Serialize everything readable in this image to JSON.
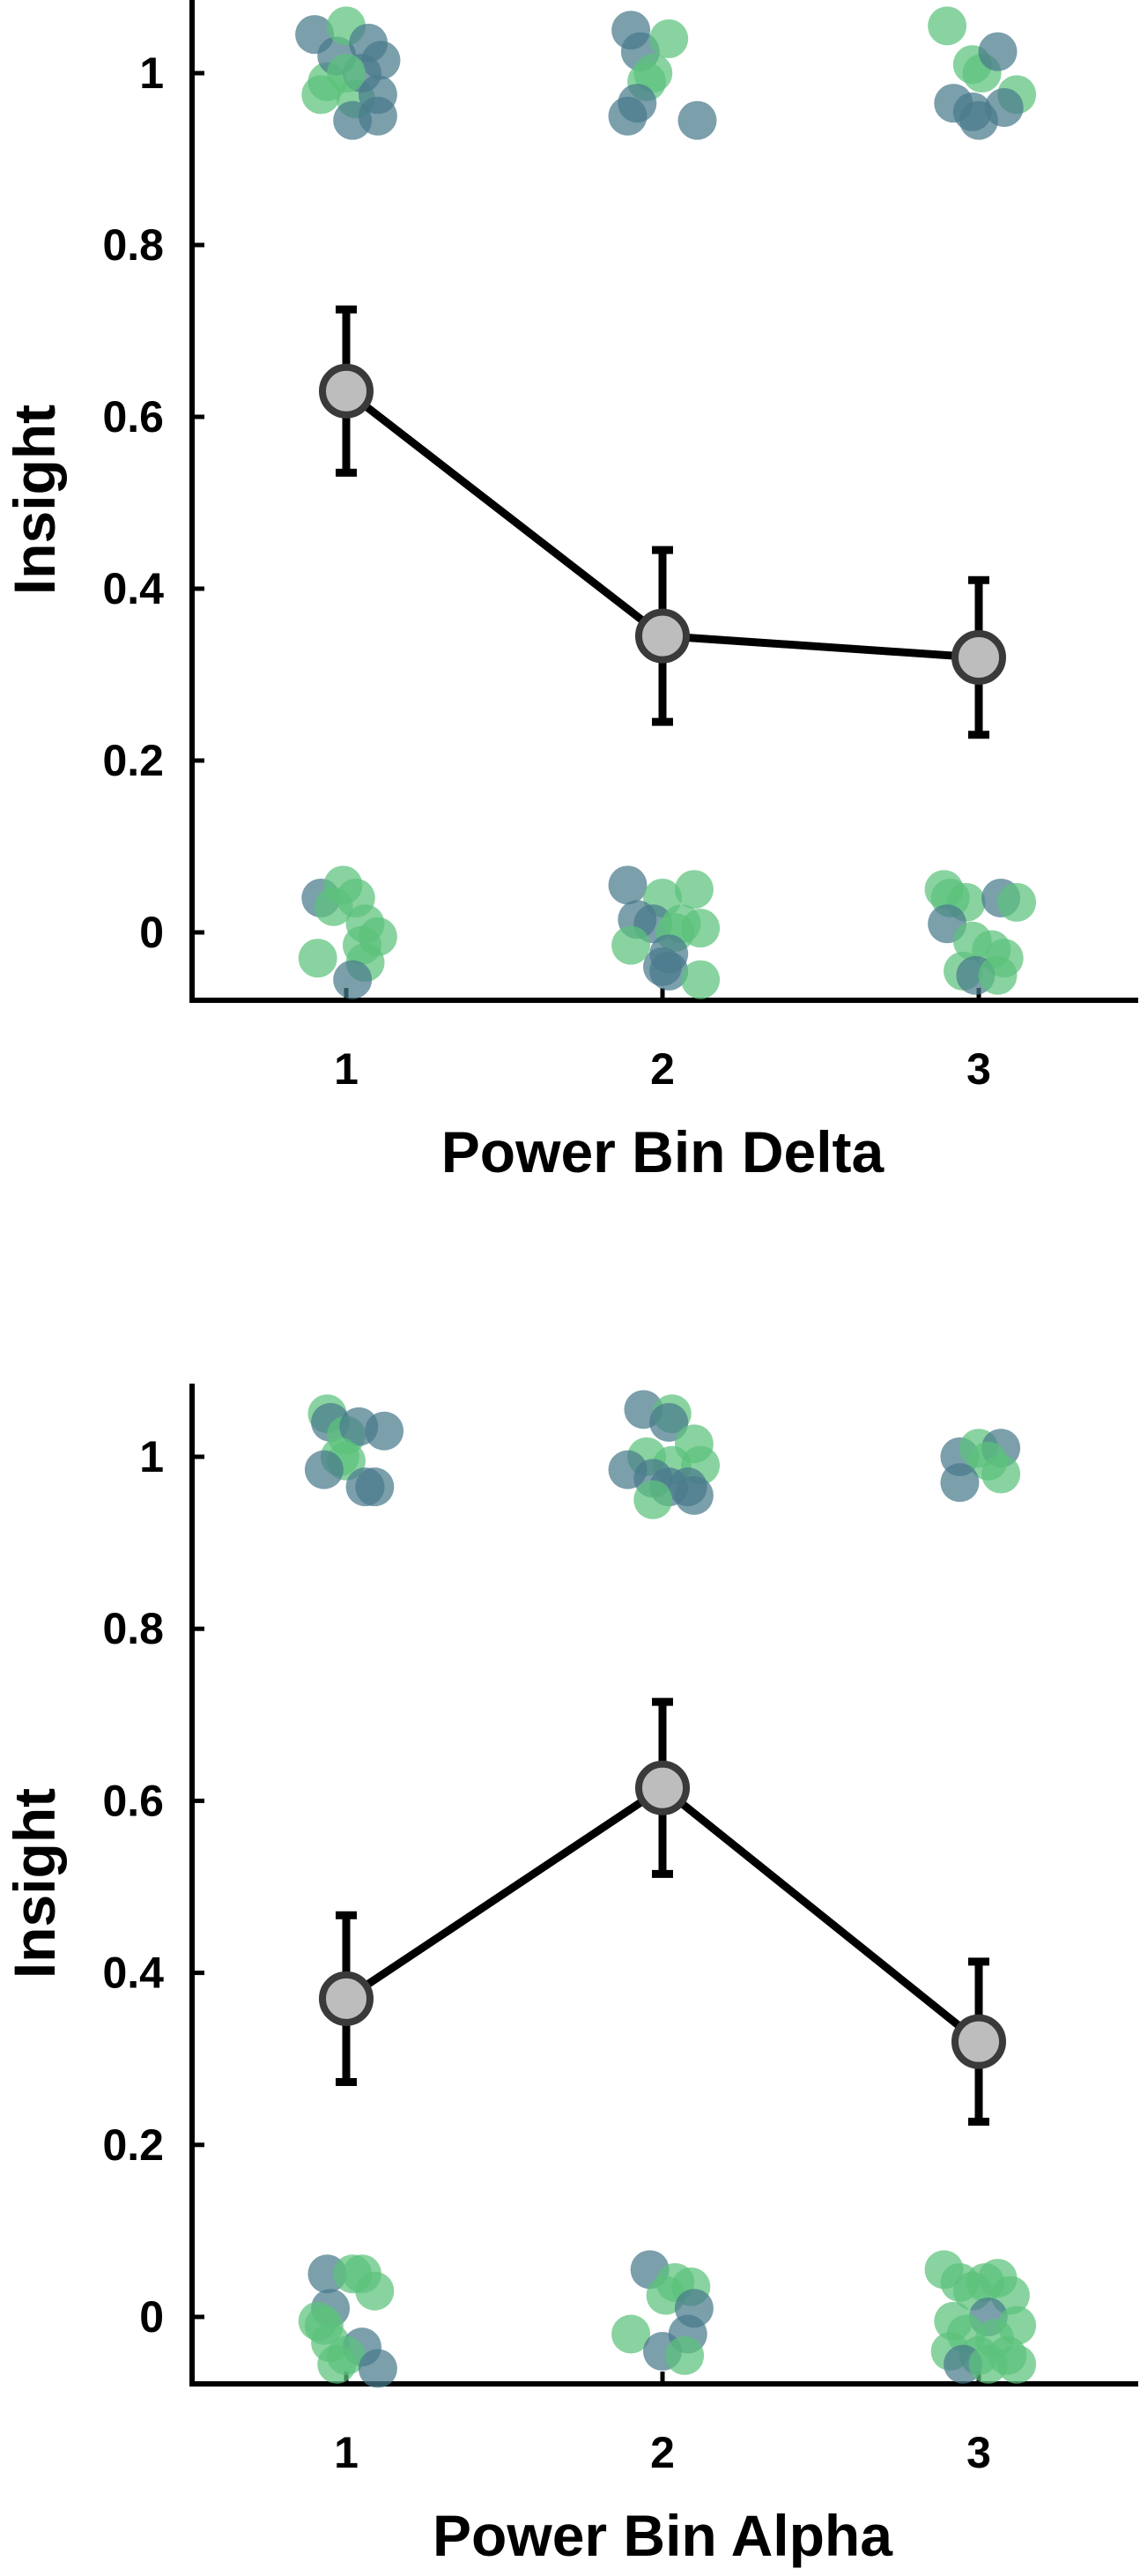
{
  "colors": {
    "dot_teal": "#4a7a8c",
    "dot_green": "#5cc27c",
    "mean_fill": "#bdbdbd",
    "mean_edge": "#3a3a3a",
    "line": "#000000"
  },
  "chart_data": [
    {
      "type": "scatter",
      "xlabel": "Power Bin Delta",
      "ylabel": "Insight",
      "x_ticks": [
        "1",
        "2",
        "3"
      ],
      "y_ticks": [
        "0",
        "0.2",
        "0.4",
        "0.6",
        "0.8",
        "1"
      ],
      "xlim": [
        0.5,
        3.5
      ],
      "ylim": [
        -0.08,
        1.08
      ],
      "grid": false,
      "mean_line": {
        "x": [
          1,
          2,
          3
        ],
        "y": [
          0.63,
          0.345,
          0.32
        ],
        "err": [
          0.095,
          0.1,
          0.09
        ]
      },
      "points": [
        {
          "x": 0.9,
          "y": 1.045,
          "c": "teal"
        },
        {
          "x": 0.94,
          "y": 0.99,
          "c": "green"
        },
        {
          "x": 0.97,
          "y": 1.02,
          "c": "teal"
        },
        {
          "x": 1.0,
          "y": 1.055,
          "c": "green"
        },
        {
          "x": 1.03,
          "y": 0.97,
          "c": "green"
        },
        {
          "x": 1.05,
          "y": 1.0,
          "c": "teal"
        },
        {
          "x": 1.07,
          "y": 1.035,
          "c": "teal"
        },
        {
          "x": 1.1,
          "y": 0.975,
          "c": "teal"
        },
        {
          "x": 1.11,
          "y": 1.015,
          "c": "teal"
        },
        {
          "x": 0.92,
          "y": 0.975,
          "c": "green"
        },
        {
          "x": 1.02,
          "y": 0.945,
          "c": "teal"
        },
        {
          "x": 1.1,
          "y": 0.95,
          "c": "teal"
        },
        {
          "x": 1.0,
          "y": 1.0,
          "c": "green"
        },
        {
          "x": 1.9,
          "y": 1.05,
          "c": "teal"
        },
        {
          "x": 1.93,
          "y": 1.025,
          "c": "teal"
        },
        {
          "x": 2.02,
          "y": 1.04,
          "c": "green"
        },
        {
          "x": 1.95,
          "y": 0.99,
          "c": "green"
        },
        {
          "x": 1.97,
          "y": 1.0,
          "c": "green"
        },
        {
          "x": 1.92,
          "y": 0.965,
          "c": "teal"
        },
        {
          "x": 1.89,
          "y": 0.95,
          "c": "teal"
        },
        {
          "x": 2.11,
          "y": 0.945,
          "c": "teal"
        },
        {
          "x": 2.9,
          "y": 1.055,
          "c": "green"
        },
        {
          "x": 2.98,
          "y": 1.01,
          "c": "green"
        },
        {
          "x": 3.01,
          "y": 1.0,
          "c": "green"
        },
        {
          "x": 3.06,
          "y": 1.025,
          "c": "teal"
        },
        {
          "x": 3.12,
          "y": 0.975,
          "c": "green"
        },
        {
          "x": 2.92,
          "y": 0.965,
          "c": "teal"
        },
        {
          "x": 2.98,
          "y": 0.955,
          "c": "teal"
        },
        {
          "x": 3.08,
          "y": 0.96,
          "c": "teal"
        },
        {
          "x": 3.0,
          "y": 0.945,
          "c": "teal"
        },
        {
          "x": 0.92,
          "y": 0.04,
          "c": "teal"
        },
        {
          "x": 0.96,
          "y": 0.03,
          "c": "green"
        },
        {
          "x": 0.99,
          "y": 0.055,
          "c": "green"
        },
        {
          "x": 1.03,
          "y": 0.04,
          "c": "green"
        },
        {
          "x": 1.06,
          "y": 0.01,
          "c": "green"
        },
        {
          "x": 1.1,
          "y": -0.005,
          "c": "green"
        },
        {
          "x": 1.05,
          "y": -0.015,
          "c": "green"
        },
        {
          "x": 0.91,
          "y": -0.03,
          "c": "green"
        },
        {
          "x": 1.06,
          "y": -0.035,
          "c": "green"
        },
        {
          "x": 1.02,
          "y": -0.055,
          "c": "teal"
        },
        {
          "x": 1.89,
          "y": 0.055,
          "c": "teal"
        },
        {
          "x": 2.0,
          "y": 0.04,
          "c": "green"
        },
        {
          "x": 2.1,
          "y": 0.05,
          "c": "green"
        },
        {
          "x": 1.92,
          "y": 0.015,
          "c": "teal"
        },
        {
          "x": 1.97,
          "y": 0.01,
          "c": "teal"
        },
        {
          "x": 2.04,
          "y": 0.0,
          "c": "green"
        },
        {
          "x": 2.06,
          "y": 0.01,
          "c": "green"
        },
        {
          "x": 2.12,
          "y": 0.005,
          "c": "green"
        },
        {
          "x": 1.9,
          "y": -0.015,
          "c": "green"
        },
        {
          "x": 2.02,
          "y": -0.025,
          "c": "teal"
        },
        {
          "x": 2.0,
          "y": -0.04,
          "c": "teal"
        },
        {
          "x": 2.02,
          "y": -0.045,
          "c": "teal"
        },
        {
          "x": 2.12,
          "y": -0.055,
          "c": "green"
        },
        {
          "x": 2.89,
          "y": 0.05,
          "c": "green"
        },
        {
          "x": 2.91,
          "y": 0.04,
          "c": "green"
        },
        {
          "x": 2.96,
          "y": 0.035,
          "c": "green"
        },
        {
          "x": 3.07,
          "y": 0.04,
          "c": "teal"
        },
        {
          "x": 3.12,
          "y": 0.035,
          "c": "green"
        },
        {
          "x": 2.9,
          "y": 0.01,
          "c": "teal"
        },
        {
          "x": 2.98,
          "y": -0.01,
          "c": "green"
        },
        {
          "x": 3.04,
          "y": -0.02,
          "c": "green"
        },
        {
          "x": 3.08,
          "y": -0.03,
          "c": "green"
        },
        {
          "x": 2.95,
          "y": -0.045,
          "c": "green"
        },
        {
          "x": 2.99,
          "y": -0.05,
          "c": "teal"
        },
        {
          "x": 3.06,
          "y": -0.05,
          "c": "green"
        }
      ]
    },
    {
      "type": "scatter",
      "xlabel": "Power Bin Alpha",
      "ylabel": "Insight",
      "x_ticks": [
        "1",
        "2",
        "3"
      ],
      "y_ticks": [
        "0",
        "0.2",
        "0.4",
        "0.6",
        "0.8",
        "1"
      ],
      "xlim": [
        0.5,
        3.5
      ],
      "ylim": [
        -0.08,
        1.08
      ],
      "grid": false,
      "mean_line": {
        "x": [
          1,
          2,
          3
        ],
        "y": [
          0.37,
          0.615,
          0.32
        ],
        "err": [
          0.097,
          0.1,
          0.093
        ]
      },
      "points": [
        {
          "x": 0.94,
          "y": 1.05,
          "c": "green"
        },
        {
          "x": 0.95,
          "y": 1.04,
          "c": "teal"
        },
        {
          "x": 1.0,
          "y": 1.025,
          "c": "green"
        },
        {
          "x": 1.04,
          "y": 1.035,
          "c": "teal"
        },
        {
          "x": 1.12,
          "y": 1.03,
          "c": "teal"
        },
        {
          "x": 0.98,
          "y": 1.0,
          "c": "green"
        },
        {
          "x": 1.0,
          "y": 0.995,
          "c": "green"
        },
        {
          "x": 0.93,
          "y": 0.985,
          "c": "teal"
        },
        {
          "x": 1.06,
          "y": 0.965,
          "c": "teal"
        },
        {
          "x": 1.09,
          "y": 0.965,
          "c": "teal"
        },
        {
          "x": 1.94,
          "y": 1.055,
          "c": "teal"
        },
        {
          "x": 2.03,
          "y": 1.05,
          "c": "green"
        },
        {
          "x": 2.02,
          "y": 1.04,
          "c": "teal"
        },
        {
          "x": 2.1,
          "y": 1.015,
          "c": "green"
        },
        {
          "x": 1.95,
          "y": 1.0,
          "c": "green"
        },
        {
          "x": 2.03,
          "y": 0.99,
          "c": "green"
        },
        {
          "x": 2.12,
          "y": 0.99,
          "c": "green"
        },
        {
          "x": 1.89,
          "y": 0.985,
          "c": "teal"
        },
        {
          "x": 1.97,
          "y": 0.975,
          "c": "teal"
        },
        {
          "x": 2.02,
          "y": 0.965,
          "c": "teal"
        },
        {
          "x": 2.08,
          "y": 0.965,
          "c": "teal"
        },
        {
          "x": 2.1,
          "y": 0.955,
          "c": "teal"
        },
        {
          "x": 1.97,
          "y": 0.95,
          "c": "green"
        },
        {
          "x": 2.94,
          "y": 1.0,
          "c": "teal"
        },
        {
          "x": 3.0,
          "y": 1.01,
          "c": "green"
        },
        {
          "x": 3.07,
          "y": 1.01,
          "c": "teal"
        },
        {
          "x": 3.03,
          "y": 0.995,
          "c": "green"
        },
        {
          "x": 3.07,
          "y": 0.98,
          "c": "green"
        },
        {
          "x": 2.94,
          "y": 0.97,
          "c": "teal"
        },
        {
          "x": 0.94,
          "y": 0.05,
          "c": "teal"
        },
        {
          "x": 1.02,
          "y": 0.05,
          "c": "green"
        },
        {
          "x": 1.05,
          "y": 0.05,
          "c": "green"
        },
        {
          "x": 1.09,
          "y": 0.03,
          "c": "green"
        },
        {
          "x": 0.95,
          "y": 0.01,
          "c": "teal"
        },
        {
          "x": 0.91,
          "y": -0.005,
          "c": "green"
        },
        {
          "x": 0.93,
          "y": -0.01,
          "c": "green"
        },
        {
          "x": 0.95,
          "y": -0.03,
          "c": "green"
        },
        {
          "x": 1.05,
          "y": -0.035,
          "c": "teal"
        },
        {
          "x": 1.0,
          "y": -0.045,
          "c": "green"
        },
        {
          "x": 0.97,
          "y": -0.055,
          "c": "green"
        },
        {
          "x": 1.1,
          "y": -0.06,
          "c": "teal"
        },
        {
          "x": 1.96,
          "y": 0.055,
          "c": "teal"
        },
        {
          "x": 2.04,
          "y": 0.04,
          "c": "green"
        },
        {
          "x": 2.09,
          "y": 0.035,
          "c": "green"
        },
        {
          "x": 2.01,
          "y": 0.025,
          "c": "green"
        },
        {
          "x": 2.1,
          "y": 0.01,
          "c": "teal"
        },
        {
          "x": 1.9,
          "y": -0.02,
          "c": "green"
        },
        {
          "x": 2.08,
          "y": -0.02,
          "c": "teal"
        },
        {
          "x": 2.0,
          "y": -0.04,
          "c": "teal"
        },
        {
          "x": 2.07,
          "y": -0.045,
          "c": "green"
        },
        {
          "x": 2.89,
          "y": 0.055,
          "c": "green"
        },
        {
          "x": 2.94,
          "y": 0.04,
          "c": "green"
        },
        {
          "x": 3.02,
          "y": 0.04,
          "c": "green"
        },
        {
          "x": 3.06,
          "y": 0.045,
          "c": "green"
        },
        {
          "x": 2.98,
          "y": 0.03,
          "c": "green"
        },
        {
          "x": 3.1,
          "y": 0.025,
          "c": "green"
        },
        {
          "x": 3.03,
          "y": 0.0,
          "c": "teal"
        },
        {
          "x": 2.92,
          "y": -0.005,
          "c": "green"
        },
        {
          "x": 3.12,
          "y": -0.01,
          "c": "green"
        },
        {
          "x": 2.96,
          "y": -0.02,
          "c": "green"
        },
        {
          "x": 3.05,
          "y": -0.025,
          "c": "green"
        },
        {
          "x": 2.91,
          "y": -0.04,
          "c": "green"
        },
        {
          "x": 3.0,
          "y": -0.045,
          "c": "green"
        },
        {
          "x": 3.09,
          "y": -0.045,
          "c": "green"
        },
        {
          "x": 2.95,
          "y": -0.055,
          "c": "teal"
        },
        {
          "x": 3.03,
          "y": -0.055,
          "c": "green"
        },
        {
          "x": 3.12,
          "y": -0.055,
          "c": "green"
        }
      ]
    }
  ]
}
